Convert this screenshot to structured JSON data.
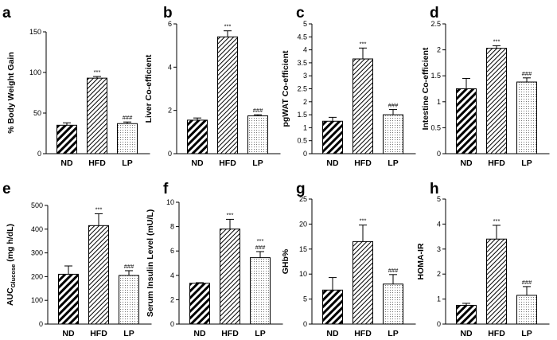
{
  "chart_data": [
    {
      "panel": "a",
      "type": "bar",
      "ylabel": "% Body  Weight Gain",
      "ylabel_sub": "",
      "categories": [
        "ND",
        "HFD",
        "LP"
      ],
      "values": [
        35,
        93,
        37
      ],
      "errors": [
        3,
        2,
        2
      ],
      "annotations": [
        [],
        [
          "***"
        ],
        [
          "###"
        ]
      ],
      "ylim": [
        0,
        150
      ],
      "yticks": [
        0,
        50,
        100,
        150
      ]
    },
    {
      "panel": "b",
      "type": "bar",
      "ylabel": "Liver Co-efficient",
      "ylabel_sub": "",
      "categories": [
        "ND",
        "HFD",
        "LP"
      ],
      "values": [
        1.55,
        5.4,
        1.75
      ],
      "errors": [
        0.1,
        0.28,
        0.05
      ],
      "annotations": [
        [],
        [
          "***"
        ],
        [
          "###"
        ]
      ],
      "ylim": [
        0,
        6
      ],
      "yticks": [
        0,
        2,
        4,
        6
      ]
    },
    {
      "panel": "c",
      "type": "bar",
      "ylabel": "pgWAT Co-efficient",
      "ylabel_sub": "",
      "categories": [
        "ND",
        "HFD",
        "LP"
      ],
      "values": [
        1.25,
        3.65,
        1.5
      ],
      "errors": [
        0.15,
        0.42,
        0.2
      ],
      "annotations": [
        [],
        [
          "***"
        ],
        [
          "###"
        ]
      ],
      "ylim": [
        0,
        5
      ],
      "yticks": [
        0,
        0.5,
        1,
        1.5,
        2,
        2.5,
        3,
        3.5,
        4,
        4.5,
        5
      ]
    },
    {
      "panel": "d",
      "type": "bar",
      "ylabel": "Intestine Co-efficient",
      "ylabel_sub": "",
      "categories": [
        "ND",
        "HFD",
        "LP"
      ],
      "values": [
        1.25,
        2.03,
        1.38
      ],
      "errors": [
        0.2,
        0.05,
        0.08
      ],
      "annotations": [
        [],
        [
          "***"
        ],
        [
          "###"
        ]
      ],
      "ylim": [
        0,
        2.5
      ],
      "yticks": [
        0,
        0.5,
        1,
        1.5,
        2,
        2.5
      ]
    },
    {
      "panel": "e",
      "type": "bar",
      "ylabel": "AUC",
      "ylabel_sub": "Glucose",
      "ylabel_suffix": " (mg h/dL)",
      "categories": [
        "ND",
        "HFD",
        "LP"
      ],
      "values": [
        210,
        415,
        205
      ],
      "errors": [
        35,
        50,
        20
      ],
      "annotations": [
        [],
        [
          "***"
        ],
        [
          "###"
        ]
      ],
      "ylim": [
        0,
        500
      ],
      "yticks": [
        0,
        100,
        200,
        300,
        400,
        500
      ]
    },
    {
      "panel": "f",
      "type": "bar",
      "ylabel": "Serum Insulin Level (mU/L)",
      "ylabel_sub": "",
      "categories": [
        "ND",
        "HFD",
        "LP"
      ],
      "values": [
        3.35,
        7.8,
        5.45
      ],
      "errors": [
        0.05,
        0.8,
        0.5
      ],
      "annotations": [
        [],
        [
          "***"
        ],
        [
          "***",
          "###"
        ]
      ],
      "ylim": [
        0,
        10
      ],
      "yticks": [
        0,
        2,
        4,
        6,
        8,
        10
      ]
    },
    {
      "panel": "g",
      "type": "bar",
      "ylabel": "GHb%",
      "ylabel_sub": "",
      "categories": [
        "ND",
        "HFD",
        "LP"
      ],
      "values": [
        6.8,
        16.5,
        8.0
      ],
      "errors": [
        2.5,
        3.3,
        1.9
      ],
      "annotations": [
        [],
        [
          "***"
        ],
        [
          "###"
        ]
      ],
      "ylim": [
        0,
        25
      ],
      "yticks": [
        0,
        5,
        10,
        15,
        20,
        25
      ]
    },
    {
      "panel": "h",
      "type": "bar",
      "ylabel": "HOMA-IR",
      "ylabel_sub": "",
      "categories": [
        "ND",
        "HFD",
        "LP"
      ],
      "values": [
        0.75,
        3.4,
        1.15
      ],
      "errors": [
        0.08,
        0.55,
        0.35
      ],
      "annotations": [
        [],
        [
          "***"
        ],
        [
          "###"
        ]
      ],
      "ylim": [
        0,
        5
      ],
      "yticks": [
        0,
        1,
        2,
        3,
        4,
        5
      ]
    }
  ]
}
